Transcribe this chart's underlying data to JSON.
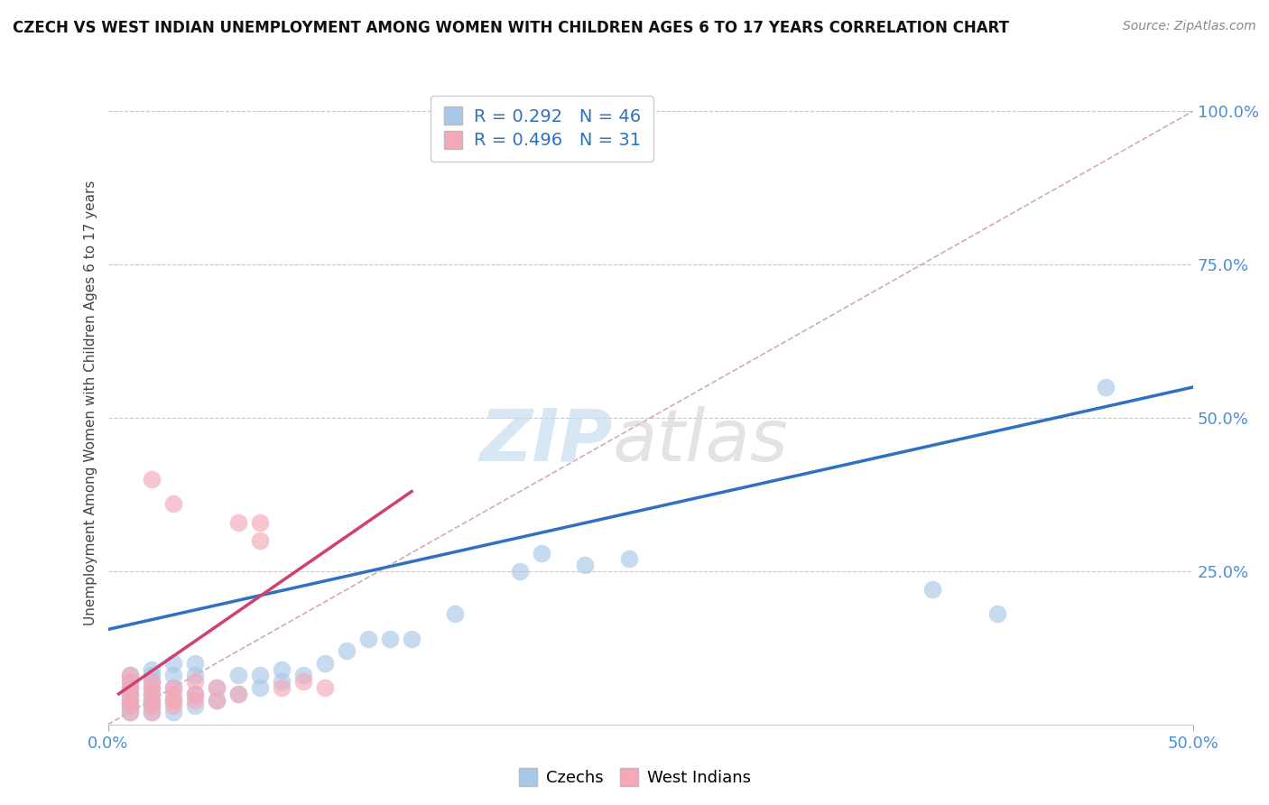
{
  "title": "CZECH VS WEST INDIAN UNEMPLOYMENT AMONG WOMEN WITH CHILDREN AGES 6 TO 17 YEARS CORRELATION CHART",
  "source": "Source: ZipAtlas.com",
  "xlim": [
    0.0,
    0.5
  ],
  "ylim": [
    0.0,
    1.05
  ],
  "ylabel": "Unemployment Among Women with Children Ages 6 to 17 years",
  "legend_bottom": [
    "Czechs",
    "West Indians"
  ],
  "czech_R": 0.292,
  "czech_N": 46,
  "west_indian_R": 0.496,
  "west_indian_N": 31,
  "czech_color": "#a8c8e8",
  "west_indian_color": "#f4a8b8",
  "czech_line_color": "#3070c0",
  "west_indian_line_color": "#d04070",
  "diagonal_color": "#d0a0a8",
  "background_color": "#ffffff",
  "czech_scatter_x": [
    0.01,
    0.01,
    0.01,
    0.01,
    0.01,
    0.01,
    0.01,
    0.02,
    0.02,
    0.02,
    0.02,
    0.02,
    0.02,
    0.02,
    0.02,
    0.03,
    0.03,
    0.03,
    0.03,
    0.03,
    0.04,
    0.04,
    0.04,
    0.04,
    0.05,
    0.05,
    0.06,
    0.06,
    0.07,
    0.07,
    0.08,
    0.08,
    0.09,
    0.1,
    0.11,
    0.12,
    0.13,
    0.14,
    0.16,
    0.19,
    0.2,
    0.22,
    0.24,
    0.38,
    0.41,
    0.46
  ],
  "czech_scatter_y": [
    0.02,
    0.03,
    0.04,
    0.05,
    0.06,
    0.07,
    0.08,
    0.02,
    0.03,
    0.04,
    0.05,
    0.06,
    0.07,
    0.08,
    0.09,
    0.02,
    0.04,
    0.06,
    0.08,
    0.1,
    0.03,
    0.05,
    0.08,
    0.1,
    0.04,
    0.06,
    0.05,
    0.08,
    0.06,
    0.08,
    0.07,
    0.09,
    0.08,
    0.1,
    0.12,
    0.14,
    0.14,
    0.14,
    0.18,
    0.25,
    0.28,
    0.26,
    0.27,
    0.22,
    0.18,
    0.55
  ],
  "west_indian_scatter_x": [
    0.01,
    0.01,
    0.01,
    0.01,
    0.01,
    0.01,
    0.01,
    0.02,
    0.02,
    0.02,
    0.02,
    0.02,
    0.02,
    0.02,
    0.03,
    0.03,
    0.03,
    0.03,
    0.03,
    0.04,
    0.04,
    0.04,
    0.05,
    0.05,
    0.06,
    0.06,
    0.07,
    0.07,
    0.08,
    0.09,
    0.1
  ],
  "west_indian_scatter_y": [
    0.02,
    0.03,
    0.04,
    0.05,
    0.06,
    0.07,
    0.08,
    0.02,
    0.03,
    0.04,
    0.05,
    0.06,
    0.07,
    0.4,
    0.03,
    0.04,
    0.05,
    0.06,
    0.36,
    0.04,
    0.05,
    0.07,
    0.04,
    0.06,
    0.05,
    0.33,
    0.3,
    0.33,
    0.06,
    0.07,
    0.06
  ],
  "czech_line_x0": 0.0,
  "czech_line_y0": 0.155,
  "czech_line_x1": 0.5,
  "czech_line_y1": 0.55,
  "west_indian_line_x0": 0.005,
  "west_indian_line_y0": 0.05,
  "west_indian_line_x1": 0.14,
  "west_indian_line_y1": 0.38
}
